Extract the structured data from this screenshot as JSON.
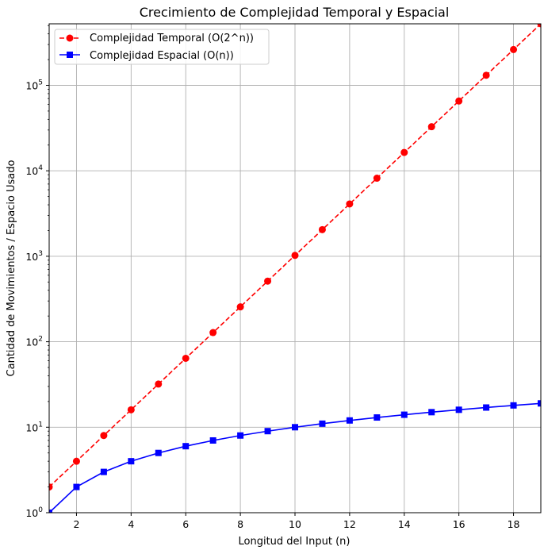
{
  "chart_data": {
    "type": "line",
    "title": "Crecimiento de Complejidad Temporal y Espacial",
    "xlabel": "Longitud del Input (n)",
    "ylabel": "Cantidad de Movimientos / Espacio Usado",
    "x": [
      1,
      2,
      3,
      4,
      5,
      6,
      7,
      8,
      9,
      10,
      11,
      12,
      13,
      14,
      15,
      16,
      17,
      18,
      19
    ],
    "xlim": [
      1,
      19
    ],
    "ylim": [
      1,
      524288
    ],
    "yscale": "log",
    "grid": true,
    "legend_position": "top-left",
    "x_ticks": [
      "2",
      "4",
      "6",
      "8",
      "10",
      "12",
      "14",
      "16",
      "18"
    ],
    "x_tick_values": [
      2,
      4,
      6,
      8,
      10,
      12,
      14,
      16,
      18
    ],
    "y_ticks": [
      {
        "base": "10",
        "exp": "0",
        "value": 1
      },
      {
        "base": "10",
        "exp": "1",
        "value": 10
      },
      {
        "base": "10",
        "exp": "2",
        "value": 100
      },
      {
        "base": "10",
        "exp": "3",
        "value": 1000
      },
      {
        "base": "10",
        "exp": "4",
        "value": 10000
      },
      {
        "base": "10",
        "exp": "5",
        "value": 100000
      }
    ],
    "series": [
      {
        "name": "Complejidad Temporal (O(2^n))",
        "color": "#ff0000",
        "line_style": "dashed",
        "marker": "circle",
        "values": [
          2,
          4,
          8,
          16,
          32,
          64,
          128,
          256,
          512,
          1024,
          2048,
          4096,
          8192,
          16384,
          32768,
          65536,
          131072,
          262144,
          524288
        ]
      },
      {
        "name": "Complejidad Espacial (O(n))",
        "color": "#0000ff",
        "line_style": "solid",
        "marker": "square",
        "values": [
          1,
          2,
          3,
          4,
          5,
          6,
          7,
          8,
          9,
          10,
          11,
          12,
          13,
          14,
          15,
          16,
          17,
          18,
          19
        ]
      }
    ]
  }
}
